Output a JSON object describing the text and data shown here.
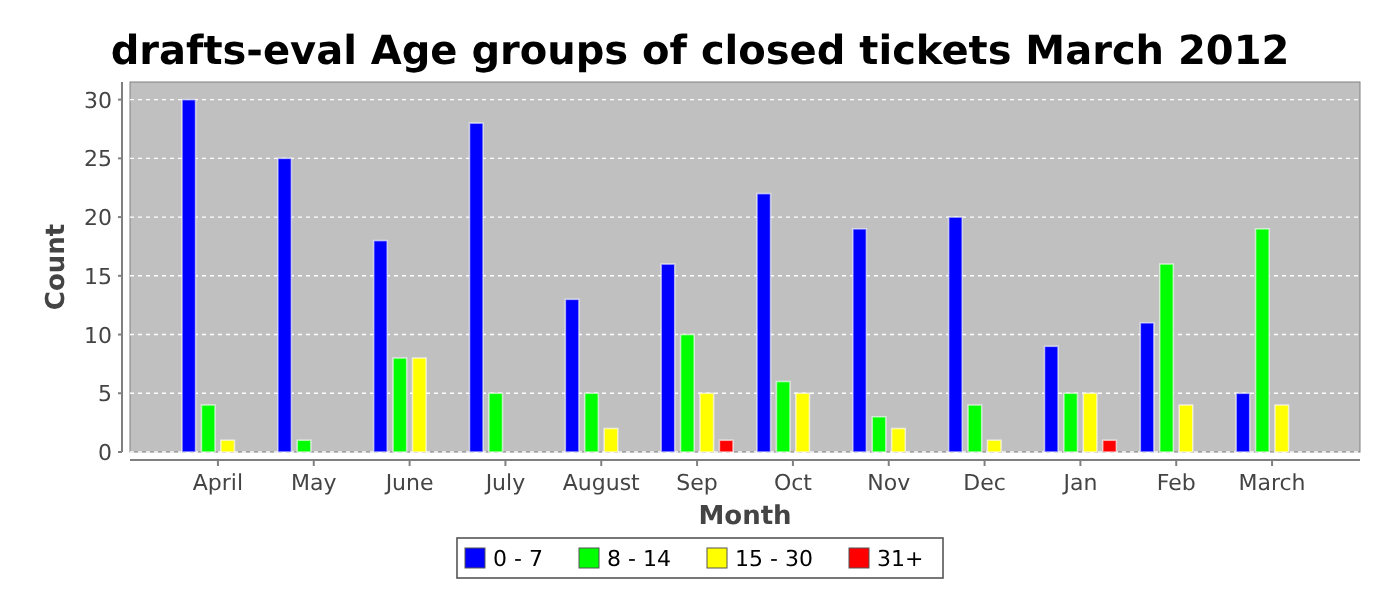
{
  "chart_data": {
    "type": "bar",
    "title": "drafts-eval Age groups of closed tickets March 2012",
    "xlabel": "Month",
    "ylabel": "Count",
    "categories": [
      "April",
      "May",
      "June",
      "July",
      "August",
      "Sep",
      "Oct",
      "Nov",
      "Dec",
      "Jan",
      "Feb",
      "March"
    ],
    "series": [
      {
        "name": "0 - 7",
        "color": "#0000ff",
        "values": [
          30,
          25,
          18,
          28,
          13,
          16,
          22,
          19,
          20,
          9,
          11,
          5
        ]
      },
      {
        "name": "8 - 14",
        "color": "#00ff00",
        "values": [
          4,
          1,
          8,
          5,
          5,
          10,
          6,
          3,
          4,
          5,
          16,
          19
        ]
      },
      {
        "name": "15 - 30",
        "color": "#ffff00",
        "values": [
          1,
          0,
          8,
          0,
          2,
          5,
          5,
          2,
          1,
          5,
          4,
          4
        ]
      },
      {
        "name": "31+",
        "color": "#ff0000",
        "values": [
          0,
          0,
          0,
          0,
          0,
          1,
          0,
          0,
          0,
          1,
          0,
          0
        ]
      }
    ],
    "ylim": [
      0,
      31.5
    ],
    "yticks": [
      0,
      5,
      10,
      15,
      20,
      25,
      30
    ],
    "grid": "y",
    "legend": "bottom"
  }
}
